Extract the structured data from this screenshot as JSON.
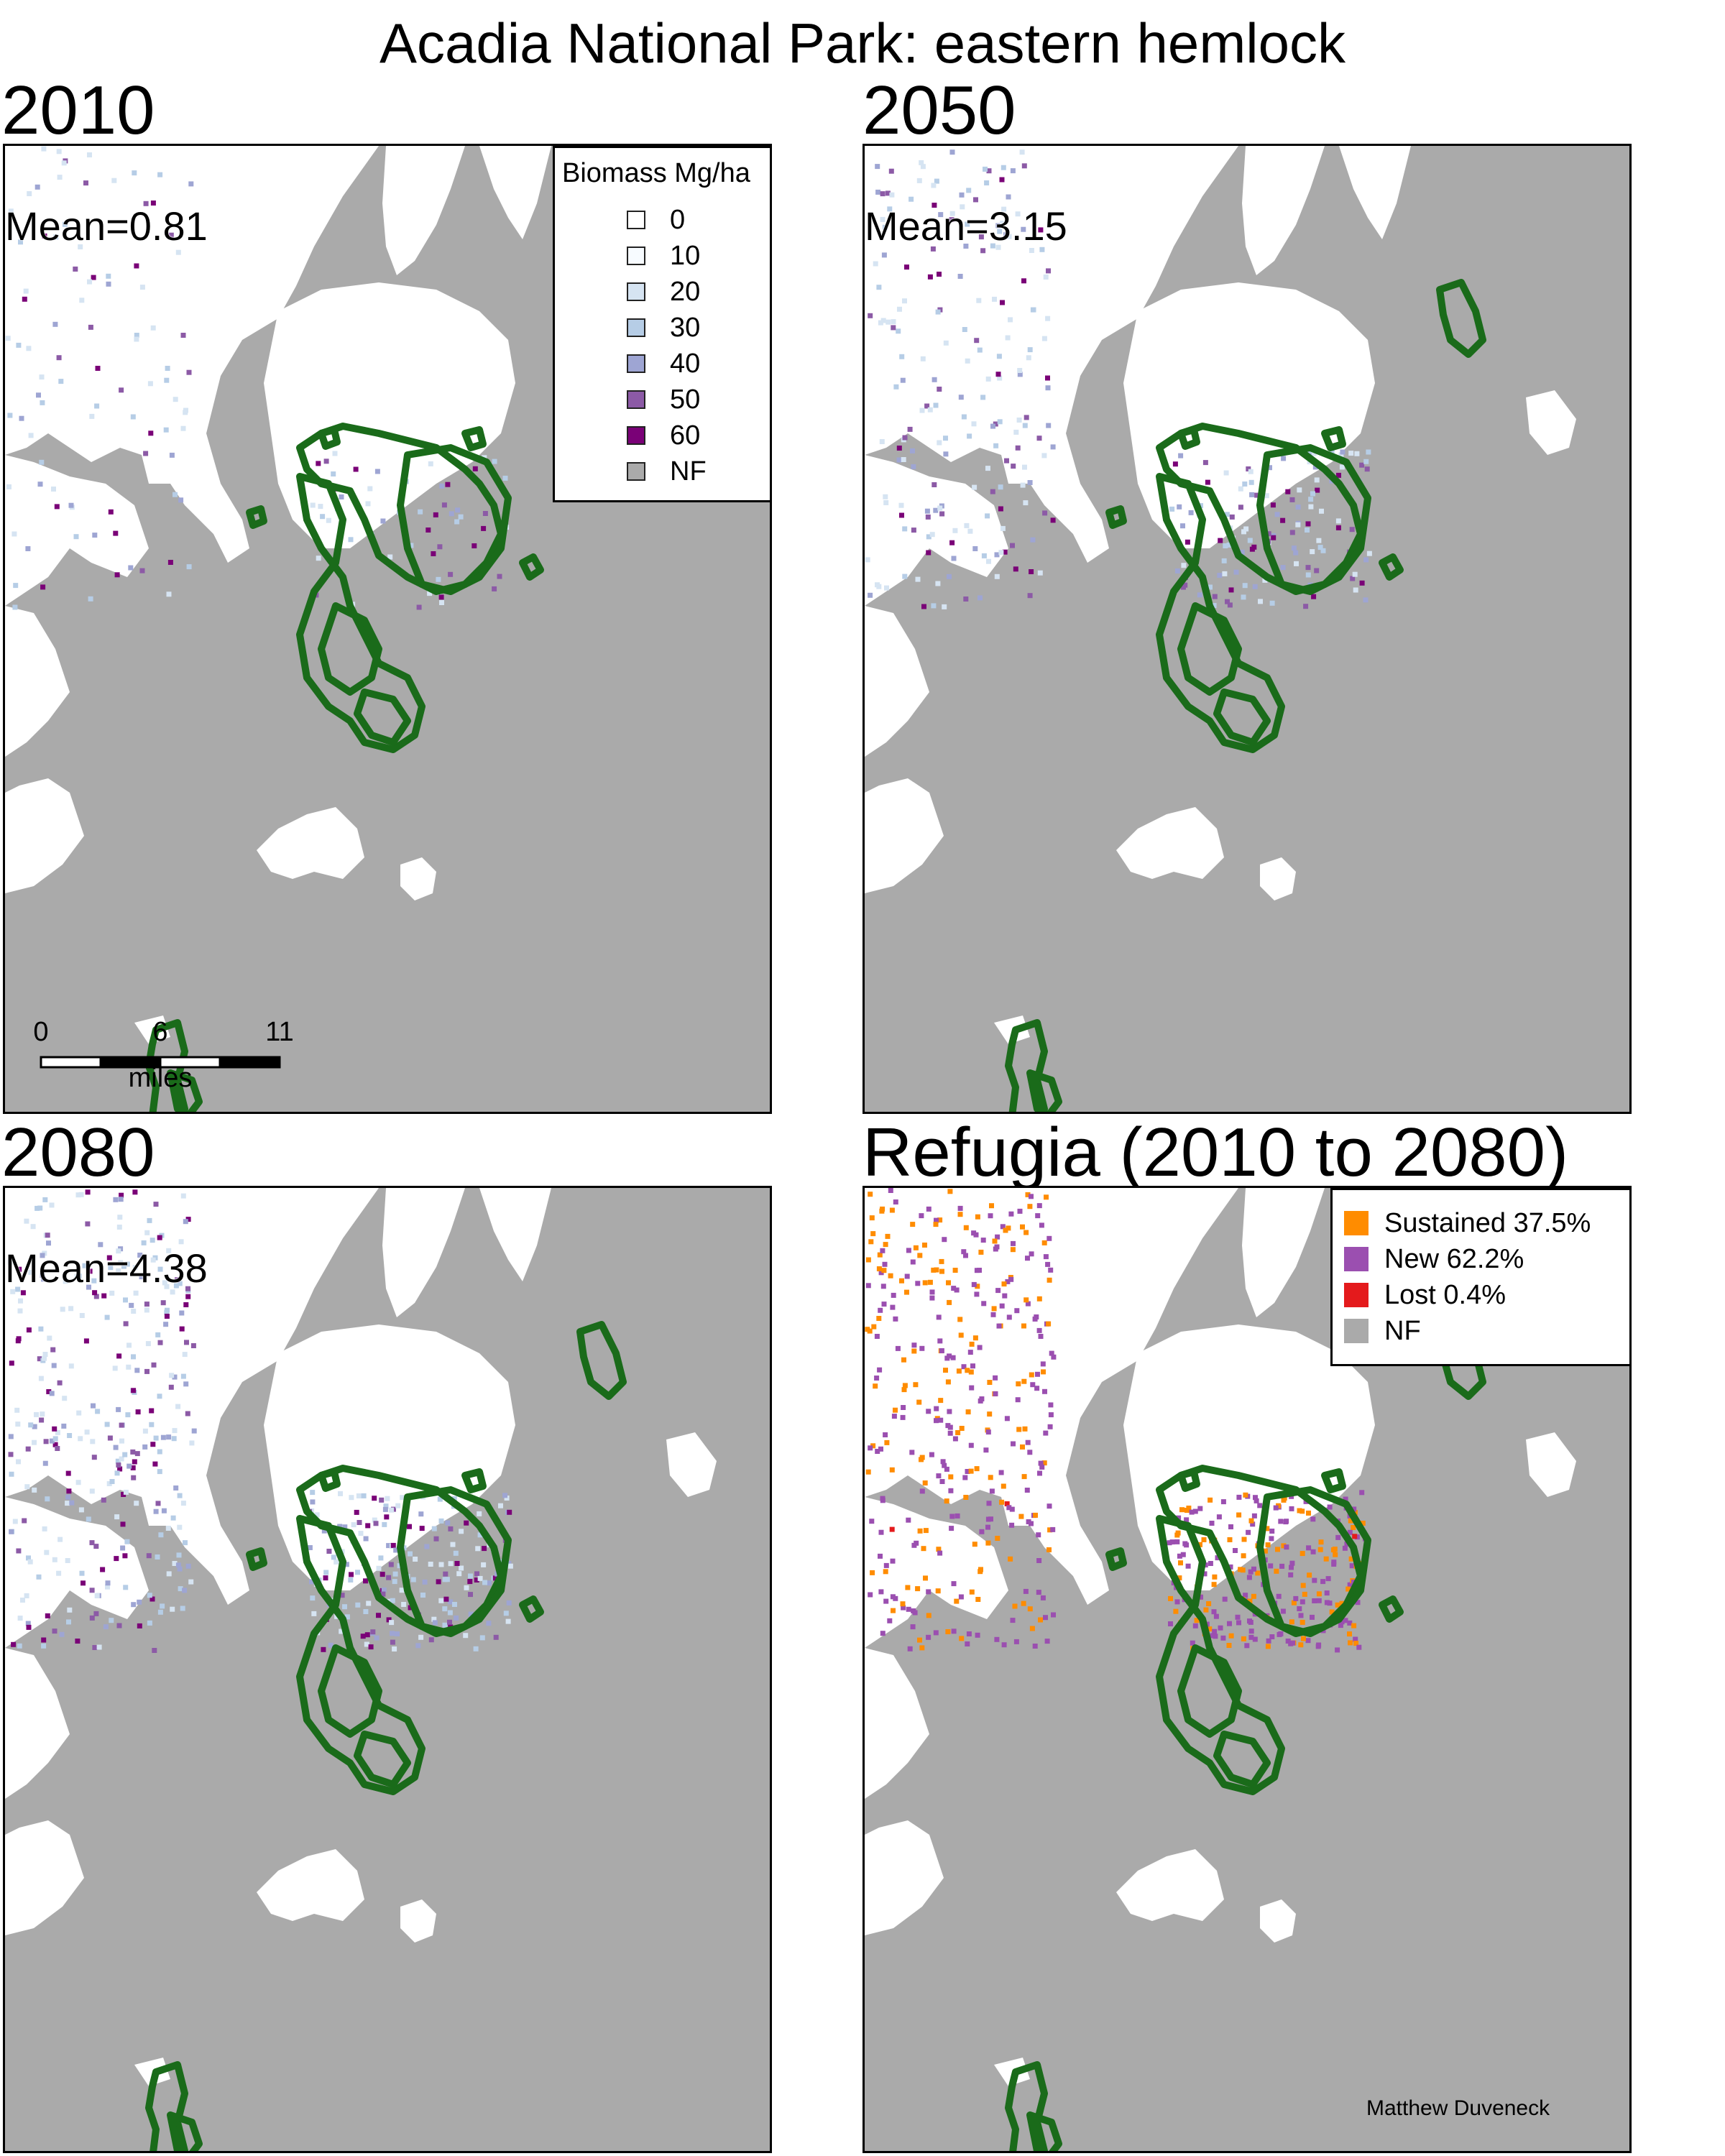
{
  "title": "Acadia National Park: eastern hemlock",
  "panels": [
    {
      "id": "p2010",
      "title": "2010",
      "mean": "Mean=0.81",
      "kind": "biomass",
      "level": 0.25
    },
    {
      "id": "p2050",
      "title": "2050",
      "mean": "Mean=3.15",
      "kind": "biomass",
      "level": 0.55
    },
    {
      "id": "p2080",
      "title": "2080",
      "mean": "Mean=4.38",
      "kind": "biomass",
      "level": 0.85
    },
    {
      "id": "prefugia",
      "title": "Refugia (2010 to 2080)",
      "mean": "",
      "kind": "refugia",
      "level": 1.0
    }
  ],
  "biomass_legend": {
    "title": "Biomass Mg/ha",
    "items": [
      {
        "label": "0",
        "color": "#ffffff"
      },
      {
        "label": "10",
        "color": "#f7fbff"
      },
      {
        "label": "20",
        "color": "#d6e4f2"
      },
      {
        "label": "30",
        "color": "#b6cde6"
      },
      {
        "label": "40",
        "color": "#9ea5d3"
      },
      {
        "label": "50",
        "color": "#8c5aa6"
      },
      {
        "label": "60",
        "color": "#7a0177"
      },
      {
        "label": "NF",
        "color": "#aaaaaa"
      }
    ]
  },
  "refugia_legend": {
    "items": [
      {
        "label": "Sustained 37.5%",
        "color": "#ff8c00"
      },
      {
        "label": "New 62.2%",
        "color": "#9b4fb0"
      },
      {
        "label": "Lost 0.4%",
        "color": "#e41a1c"
      },
      {
        "label": "NF",
        "color": "#aaaaaa"
      }
    ]
  },
  "scalebar": {
    "ticks": [
      "0",
      "6",
      "11"
    ],
    "unit": "miles"
  },
  "credit": "Matthew Duveneck",
  "colors": {
    "nonforest": "#aaaaaa",
    "land": "#ffffff",
    "boundary": "#1a6b1a"
  }
}
